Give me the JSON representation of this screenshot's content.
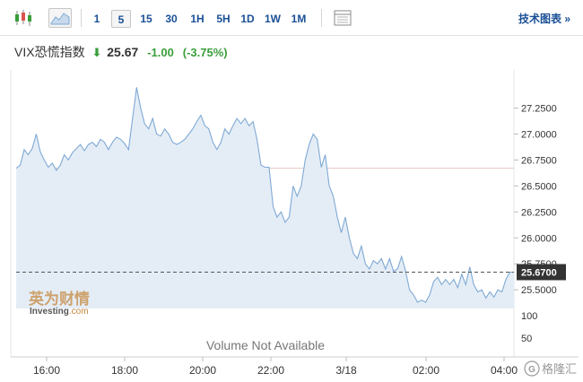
{
  "toolbar": {
    "timeframes": [
      "1",
      "5",
      "15",
      "30",
      "1H",
      "5H",
      "1D",
      "1W",
      "1M"
    ],
    "active_timeframe": "5",
    "tech_chart_label": "技术图表 »"
  },
  "quote": {
    "name": "VIX恐慌指数",
    "arrow": "⬇",
    "price": "25.67",
    "change": "-1.00",
    "change_pct": "(-3.75%)"
  },
  "colors": {
    "line": "#7fa9d4",
    "area": "#e4edf6",
    "up_down": "#3a9e3a",
    "prev_close_line": "#e8c4c4",
    "axis_text": "#333333"
  },
  "watermark": {
    "brand_cn": "英为财情",
    "brand_en": "Investing",
    "brand_suffix": ".com"
  },
  "volume_note": "Volume Not Available",
  "corner_badge": "格隆汇",
  "chart_data": {
    "type": "area",
    "title": "",
    "xlabel": "",
    "ylabel": "",
    "ylim": [
      25.32,
      27.6
    ],
    "y_ticks": [
      "27.2500",
      "27.0000",
      "26.7500",
      "26.5000",
      "26.2500",
      "26.0000",
      "25.7500",
      "25.5000"
    ],
    "x_ticks": [
      "16:00",
      "18:00",
      "20:00",
      "22:00",
      "3/18",
      "02:00",
      "04:00"
    ],
    "volume_ticks": [
      "100",
      "50"
    ],
    "current_value": "25.6700",
    "previous_close": 26.67,
    "series": [
      {
        "values": [
          26.67,
          26.7,
          26.85,
          26.8,
          26.86,
          27.0,
          26.83,
          26.75,
          26.68,
          26.72,
          26.65,
          26.7,
          26.8,
          26.75,
          26.82,
          26.86,
          26.9,
          26.84,
          26.9,
          26.92,
          26.88,
          26.95,
          26.92,
          26.85,
          26.92,
          26.97,
          26.95,
          26.91,
          26.85,
          27.15,
          27.45,
          27.25,
          27.1,
          27.05,
          27.15,
          27.0,
          26.98,
          27.05,
          27.0,
          26.92,
          26.9,
          26.92,
          26.95,
          27.0,
          27.05,
          27.12,
          27.18,
          27.08,
          27.05,
          26.92,
          26.85,
          26.92,
          27.05,
          27.0,
          27.08,
          27.15,
          27.1,
          27.15,
          27.08,
          27.12,
          26.95,
          26.7,
          26.68,
          26.68,
          26.3,
          26.2,
          26.25,
          26.15,
          26.2,
          26.5,
          26.4,
          26.5,
          26.75,
          26.9,
          27.0,
          26.95,
          26.68,
          26.8,
          26.5,
          26.4,
          26.2,
          26.05,
          26.2,
          26.0,
          25.85,
          25.8,
          25.92,
          25.75,
          25.7,
          25.78,
          25.75,
          25.8,
          25.7,
          25.8,
          25.68,
          25.7,
          25.82,
          25.68,
          25.5,
          25.45,
          25.38,
          25.4,
          25.38,
          25.45,
          25.58,
          25.62,
          25.55,
          25.6,
          25.55,
          25.6,
          25.52,
          25.65,
          25.55,
          25.72,
          25.55,
          25.48,
          25.5,
          25.42,
          25.48,
          25.43,
          25.5,
          25.48,
          25.6,
          25.67,
          25.67
        ]
      }
    ]
  }
}
